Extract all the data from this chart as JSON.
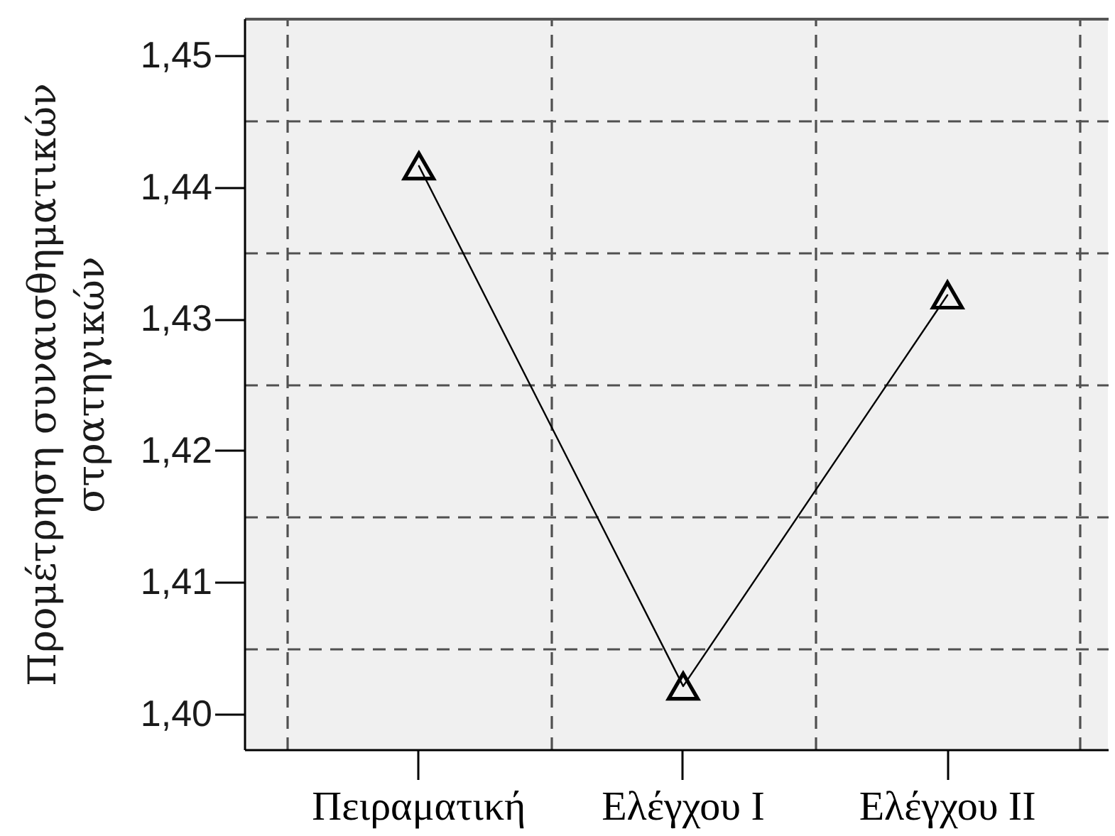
{
  "chart_data": {
    "type": "line",
    "ylabel": "Προμέτρηση συναισθηματικών\nστρατηγικών",
    "categories": [
      "Πειραματική",
      "Ελέγχου I",
      "Ελέγχου II"
    ],
    "values": [
      1.4416,
      1.4021,
      1.4318
    ],
    "color": "#000000",
    "ylim": [
      1.3973,
      1.4528
    ],
    "yticks": [
      {
        "value": 1.4,
        "label": "1,40"
      },
      {
        "value": 1.41,
        "label": "1,41"
      },
      {
        "value": 1.42,
        "label": "1,42"
      },
      {
        "value": 1.43,
        "label": "1,43"
      },
      {
        "value": 1.44,
        "label": "1,44"
      },
      {
        "value": 1.45,
        "label": "1,45"
      }
    ],
    "grid": true,
    "marker": "triangle",
    "line_style": "solid"
  }
}
